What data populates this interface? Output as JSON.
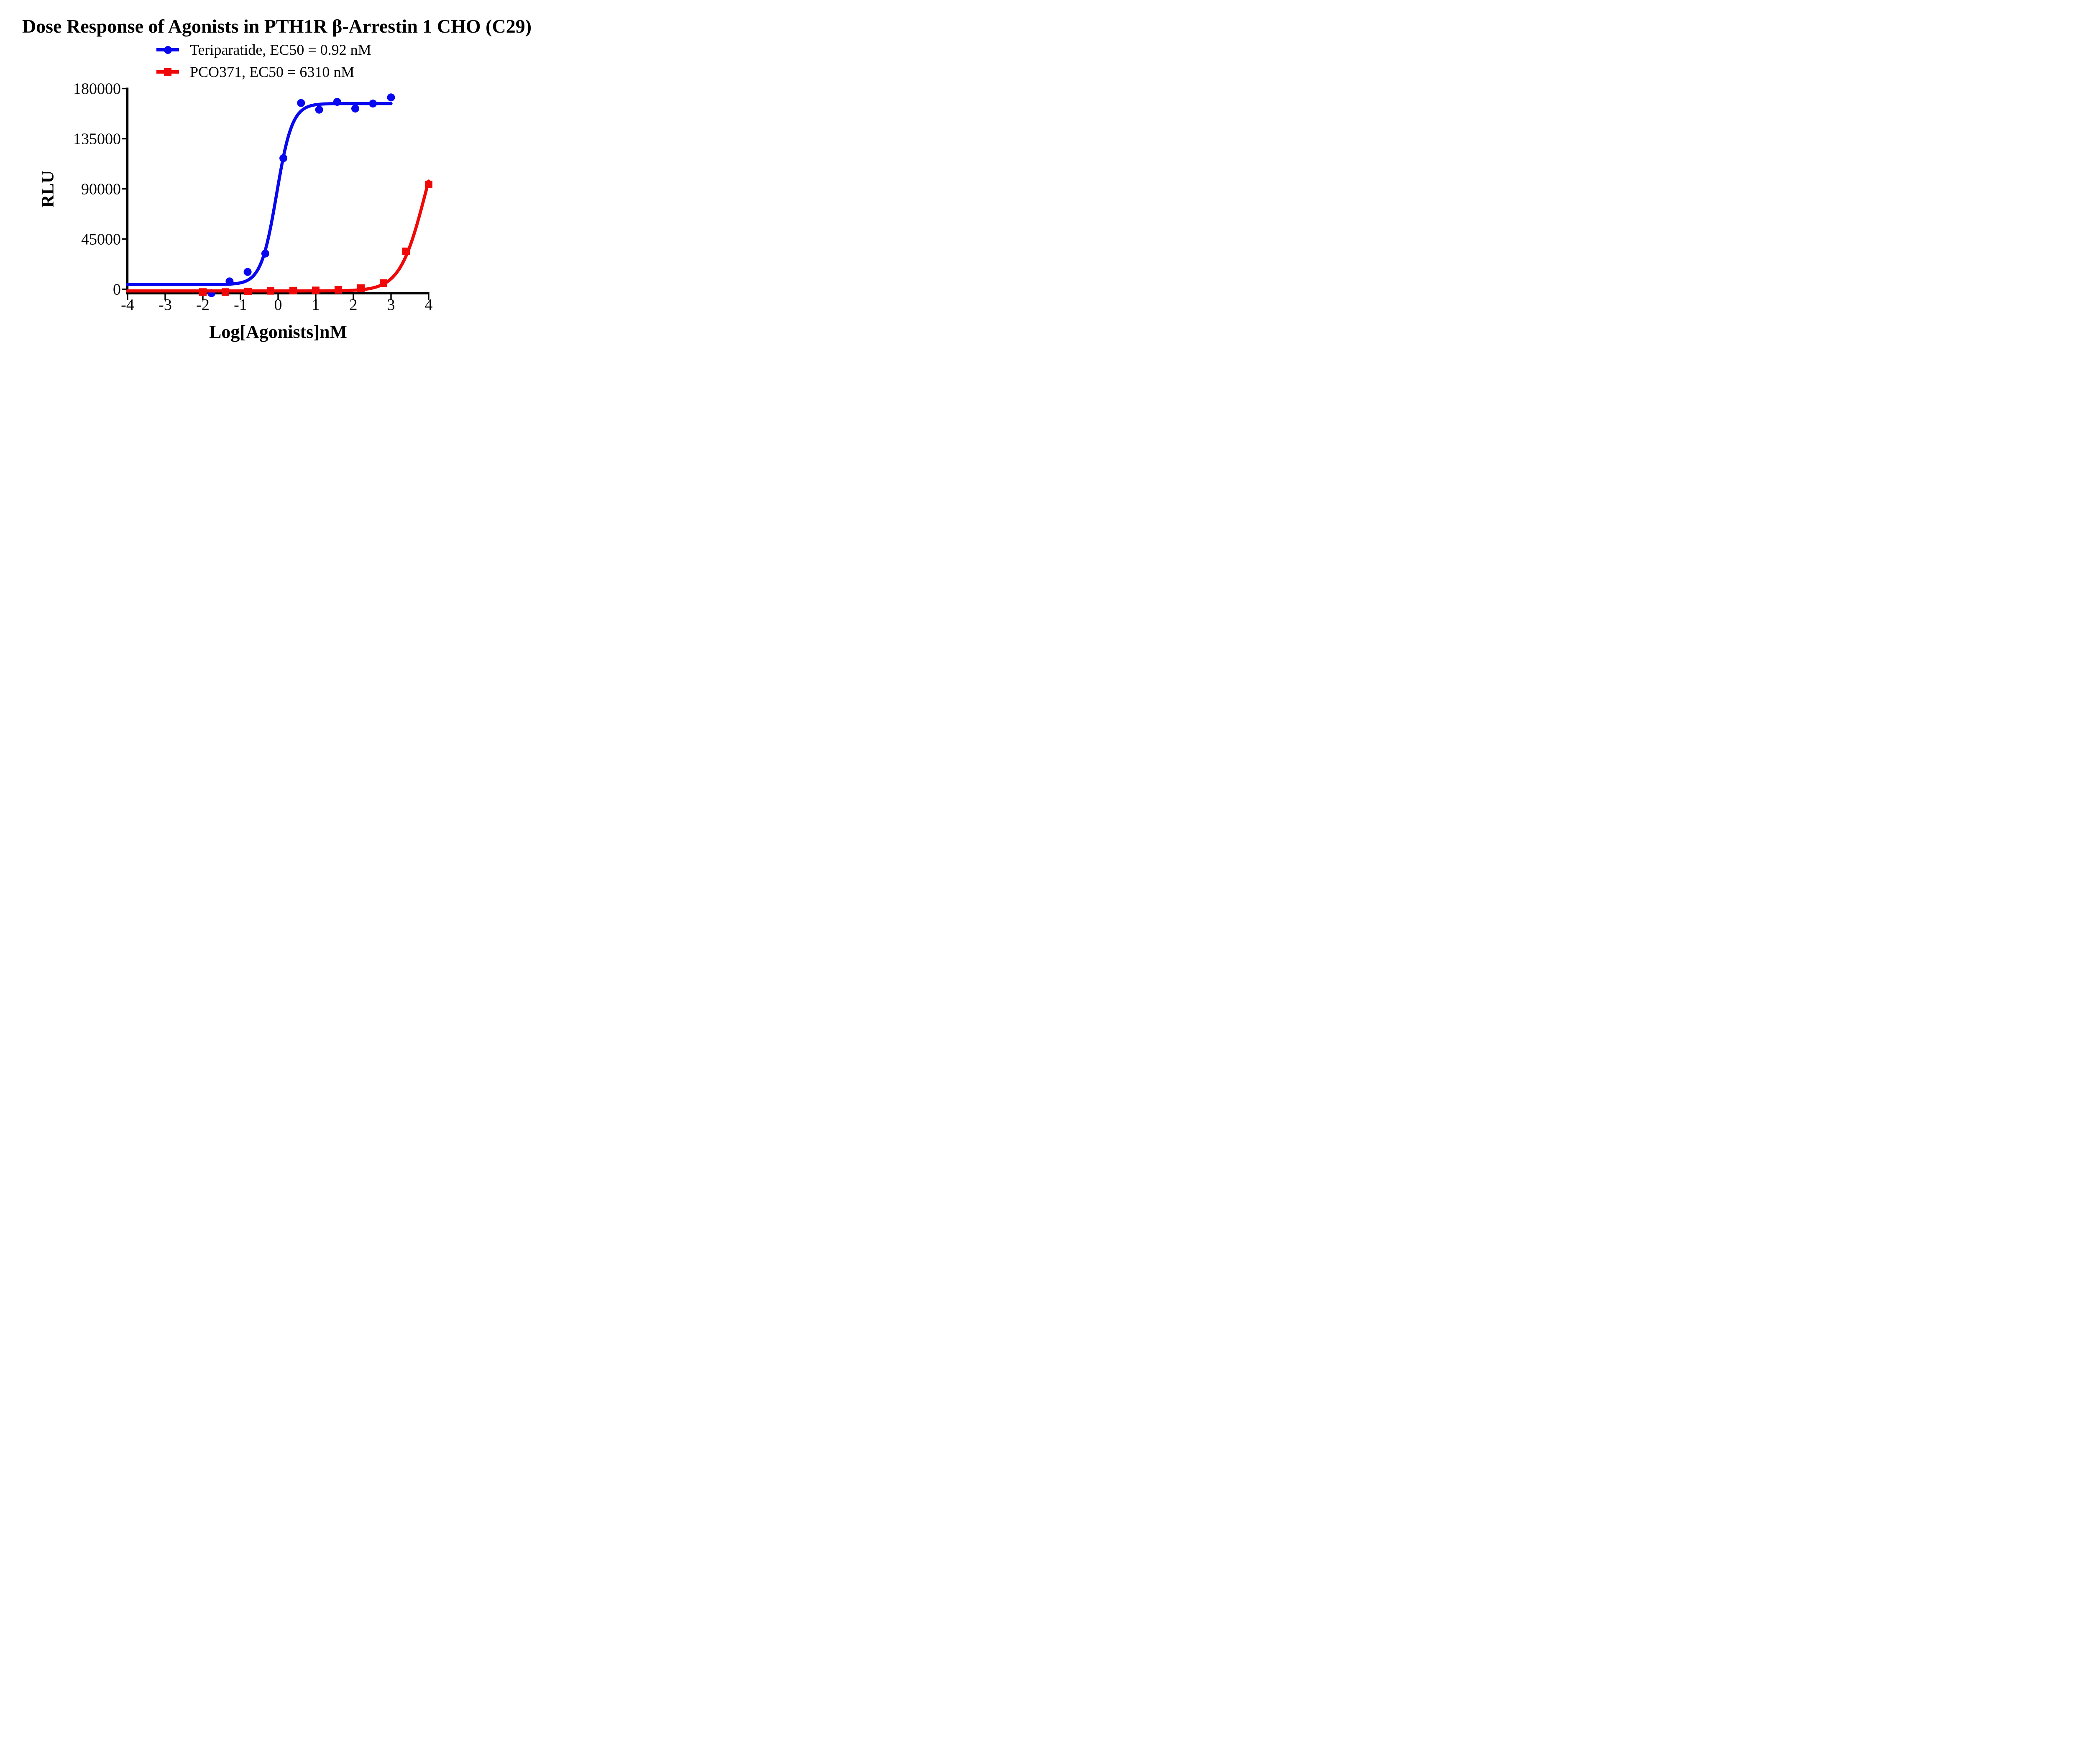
{
  "figure": {
    "title": "Dose Response of Agonists in PTH1R β-Arrestin 1 CHO (C29)"
  },
  "legend": [
    {
      "label": "Teriparatide, EC50 = 0.92 nM",
      "color": "#0808F0",
      "marker": "circle"
    },
    {
      "label": "PCO371, EC50 = 6310 nM",
      "color": "#F00808",
      "marker": "square"
    }
  ],
  "chart_data": {
    "type": "scatter",
    "title": "Dose Response of Agonists in PTH1R β-Arrestin 1 CHO (C29)",
    "xlabel": "Log[Agonists]nM",
    "ylabel": "RLU",
    "xlim": [
      -4,
      4
    ],
    "ylim": [
      0,
      180000
    ],
    "x_ticks": [
      -4,
      -3,
      -2,
      -1,
      0,
      1,
      2,
      3,
      4
    ],
    "y_ticks": [
      0,
      45000,
      90000,
      135000,
      180000
    ],
    "grid": false,
    "legend_position": "top-center",
    "axis_color": "#000000",
    "series": [
      {
        "name": "Teriparatide",
        "ec50_label": "EC50 = 0.92 nM",
        "color": "#0808F0",
        "marker": "circle",
        "x": [
          -1.77,
          -1.29,
          -0.81,
          -0.34,
          0.14,
          0.61,
          1.09,
          1.57,
          2.05,
          2.52,
          3.0
        ],
        "y": [
          -3500,
          7000,
          15500,
          32000,
          117500,
          167000,
          161000,
          168000,
          162000,
          166500,
          172000
        ],
        "fit": {
          "model": "4PL-sigmoid",
          "bottom": 4200,
          "top": 166500,
          "log_ec50": -0.04,
          "hill": 2.1,
          "x_range": [
            -4,
            3.0
          ]
        }
      },
      {
        "name": "PCO371",
        "ec50_label": "EC50 = 6310 nM",
        "color": "#F00808",
        "marker": "square",
        "x": [
          -2.0,
          -1.4,
          -0.8,
          -0.2,
          0.4,
          1.0,
          1.6,
          2.2,
          2.8,
          3.4,
          4.0
        ],
        "y": [
          -2500,
          -2500,
          -2000,
          -1500,
          -1200,
          -1000,
          -500,
          1000,
          5500,
          34000,
          94000
        ],
        "fit": {
          "model": "4PL-sigmoid",
          "bottom": -1500,
          "top": 170000,
          "log_ec50": 3.9,
          "hill": 1.3,
          "x_range": [
            -4,
            4.0
          ]
        }
      }
    ]
  }
}
